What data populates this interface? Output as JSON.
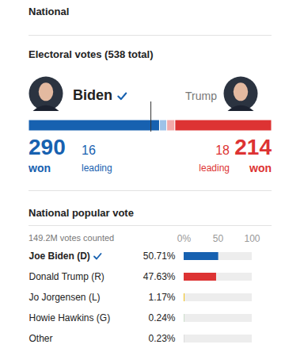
{
  "header": "National",
  "chart_data": [
    {
      "type": "bar",
      "title": "Electoral votes (538 total)",
      "orientation": "horizontal",
      "stacked": true,
      "tick_labels": false,
      "categories": [
        "won",
        "leading"
      ],
      "series": [
        {
          "name": "Biden",
          "color": "#1761b0",
          "colors": [
            "#1761b0",
            "#9dc2e8"
          ],
          "values": [
            290,
            16
          ]
        },
        {
          "name": "Trump",
          "color": "#dd3333",
          "colors": [
            "#dd3333",
            "#f2a9a9"
          ],
          "values": [
            214,
            18
          ]
        }
      ],
      "xlim": [
        0,
        538
      ],
      "threshold": 270
    },
    {
      "type": "bar",
      "title": "National popular vote",
      "subtitle": "149.2M votes counted",
      "orientation": "horizontal",
      "data_labels": true,
      "categories": [
        "Joe Biden (D)",
        "Donald Trump (R)",
        "Jo Jorgensen (L)",
        "Howie Hawkins (G)",
        "Other"
      ],
      "values": [
        50.71,
        47.63,
        1.17,
        0.24,
        0.23
      ],
      "value_labels": [
        "50.71%",
        "47.63%",
        "1.17%",
        "0.24%",
        "0.23%"
      ],
      "colors": [
        "#1761b0",
        "#dd3333",
        "#f2c21b",
        "#4fa84a",
        "#9a9a9a"
      ],
      "xlim": [
        0,
        100
      ],
      "xticks": [
        {
          "value": 0,
          "label": "0%"
        },
        50,
        100
      ]
    }
  ]
}
